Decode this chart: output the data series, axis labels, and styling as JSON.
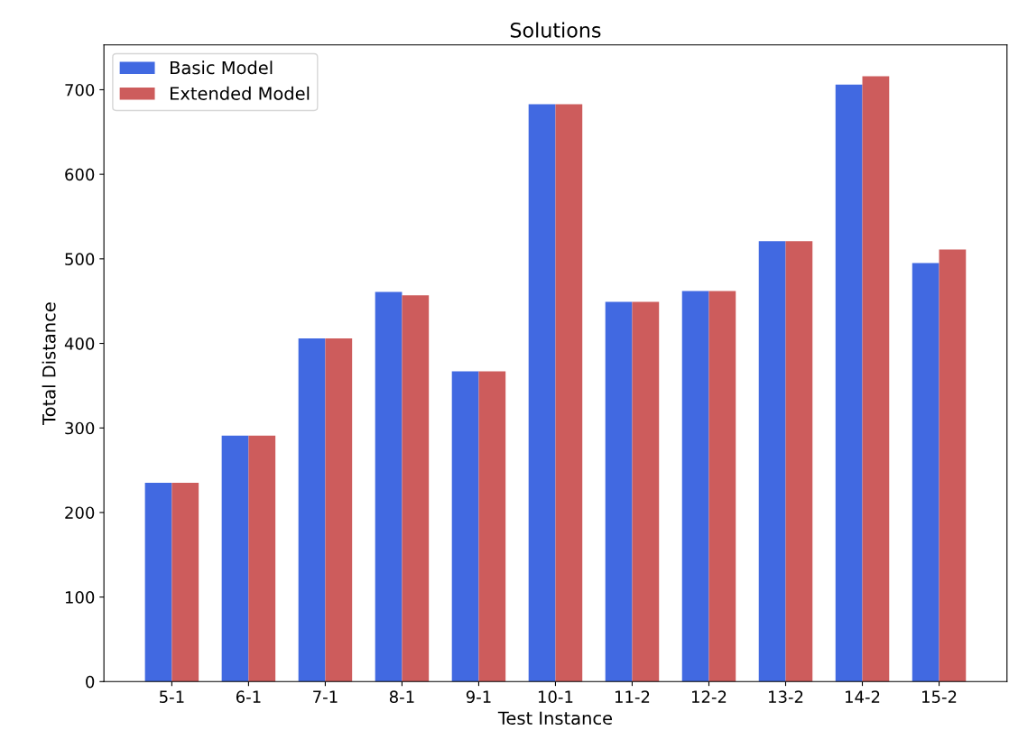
{
  "chart_data": {
    "type": "bar",
    "title": "Solutions",
    "xlabel": "Test Instance",
    "ylabel": "Total Distance",
    "categories": [
      "5-1",
      "6-1",
      "7-1",
      "8-1",
      "9-1",
      "10-1",
      "11-2",
      "12-2",
      "13-2",
      "14-2",
      "15-2"
    ],
    "series": [
      {
        "name": "Basic Model",
        "color": "#4169e1",
        "values": [
          235,
          291,
          406,
          461,
          367,
          683,
          449,
          462,
          521,
          706,
          495
        ]
      },
      {
        "name": "Extended Model",
        "color": "#cd5c5c",
        "values": [
          235,
          291,
          406,
          457,
          367,
          683,
          449,
          462,
          521,
          716,
          511
        ]
      }
    ],
    "ylim": [
      0,
      753
    ],
    "yticks": [
      0,
      100,
      200,
      300,
      400,
      500,
      600,
      700
    ],
    "grid": false,
    "legend": "top left"
  }
}
